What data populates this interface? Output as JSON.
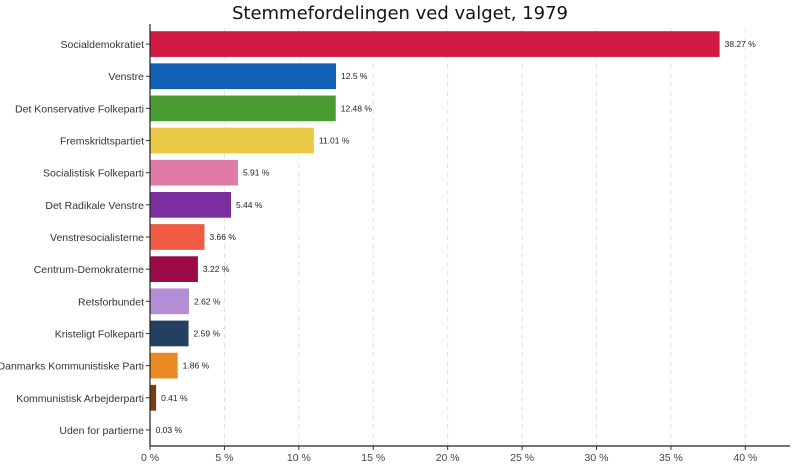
{
  "chart_data": {
    "type": "bar",
    "orientation": "horizontal",
    "title": "Stemmefordelingen ved valget, 1979",
    "xlabel": "",
    "ylabel": "",
    "xlim": [
      0,
      43
    ],
    "x_ticks": [
      0,
      5,
      10,
      15,
      20,
      25,
      30,
      35,
      40
    ],
    "tick_suffix": " %",
    "grid": "vertical dashed",
    "bars": [
      {
        "label": "Socialdemokratiet",
        "value": 38.27,
        "value_label": "38.27 %",
        "color": "#d21b42"
      },
      {
        "label": "Venstre",
        "value": 12.5,
        "value_label": "12.5 %",
        "color": "#1060b5"
      },
      {
        "label": "Det Konservative Folkeparti",
        "value": 12.48,
        "value_label": "12.48 %",
        "color": "#4b9c33"
      },
      {
        "label": "Fremskridtspartiet",
        "value": 11.01,
        "value_label": "11.01 %",
        "color": "#ebc945"
      },
      {
        "label": "Socialistisk Folkeparti",
        "value": 5.91,
        "value_label": "5.91 %",
        "color": "#e07ba8"
      },
      {
        "label": "Det Radikale Venstre",
        "value": 5.44,
        "value_label": "5.44 %",
        "color": "#7d2e9e"
      },
      {
        "label": "Venstresocialisterne",
        "value": 3.66,
        "value_label": "3.66 %",
        "color": "#ee5a44"
      },
      {
        "label": "Centrum-Demokraterne",
        "value": 3.22,
        "value_label": "3.22 %",
        "color": "#9b0a47"
      },
      {
        "label": "Retsforbundet",
        "value": 2.62,
        "value_label": "2.62 %",
        "color": "#b38ed4"
      },
      {
        "label": "Kristeligt Folkeparti",
        "value": 2.59,
        "value_label": "2.59 %",
        "color": "#233f62"
      },
      {
        "label": "Danmarks Kommunistiske Parti",
        "value": 1.86,
        "value_label": "1.86 %",
        "color": "#ea8a22"
      },
      {
        "label": "Kommunistisk Arbejderparti",
        "value": 0.41,
        "value_label": "0.41 %",
        "color": "#7a3a12"
      },
      {
        "label": "Uden for partierne",
        "value": 0.03,
        "value_label": "0.03 %",
        "color": "#999999"
      }
    ]
  }
}
